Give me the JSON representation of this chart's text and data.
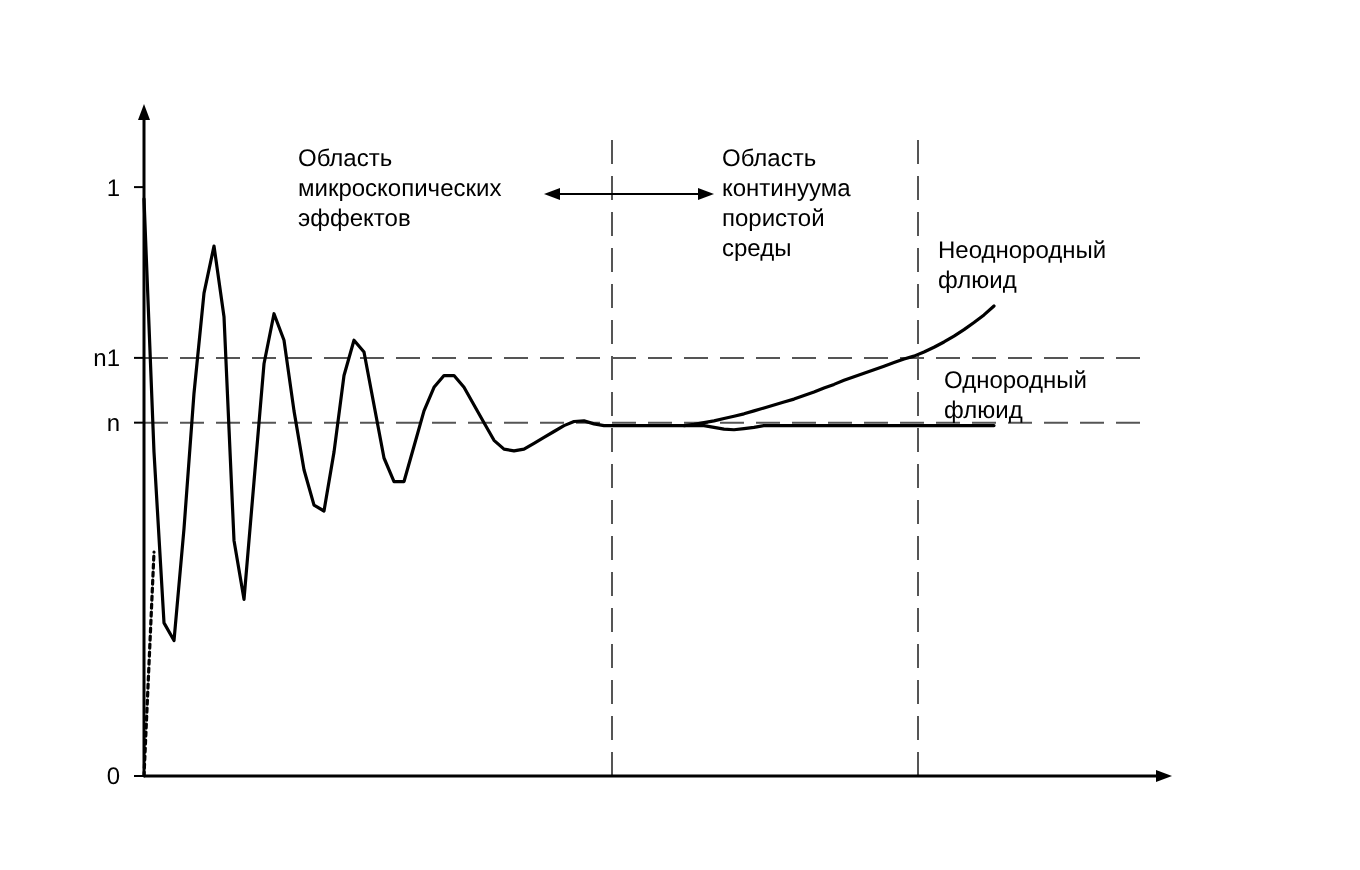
{
  "chart_data": {
    "type": "line",
    "categories": [
      null,
      null,
      null,
      null,
      null,
      null,
      null,
      null,
      null,
      null,
      null,
      null,
      null,
      null,
      null,
      null,
      null,
      null,
      null,
      null,
      null,
      null,
      null,
      null,
      null,
      null,
      null,
      null,
      null,
      null,
      null,
      null,
      null,
      null,
      null,
      null,
      null,
      null,
      null,
      null,
      null,
      null,
      null,
      null,
      null,
      null,
      null,
      null,
      null,
      null,
      null,
      null,
      null,
      null,
      null,
      null,
      null,
      null,
      null,
      null,
      null,
      null,
      null,
      null,
      null,
      null,
      null,
      null,
      null,
      null,
      null,
      null,
      null,
      null,
      null,
      null,
      null,
      null,
      null,
      null,
      null,
      null,
      null,
      null,
      null,
      null,
      null,
      null,
      null,
      null,
      null,
      null,
      null,
      null,
      null,
      null,
      null,
      null,
      null,
      null,
      null
    ],
    "ylim": [
      0,
      1.08
    ],
    "yticks": [
      0,
      {
        "value": 0.6,
        "label": "n"
      },
      {
        "value": 0.71,
        "label": "n1"
      },
      1
    ],
    "tick_labels": "y",
    "line_style": "solid",
    "series": [
      {
        "name": "Однородный флюид",
        "color": "#000000",
        "values": [
          0.98,
          0.55,
          0.26,
          0.23,
          0.42,
          0.65,
          0.82,
          0.9,
          0.78,
          0.4,
          0.3,
          0.5,
          0.7,
          0.785,
          0.74,
          0.62,
          0.52,
          0.46,
          0.45,
          0.55,
          0.68,
          0.74,
          0.72,
          0.63,
          0.54,
          0.5,
          0.5,
          0.56,
          0.62,
          0.66,
          0.68,
          0.68,
          0.66,
          0.63,
          0.6,
          0.57,
          0.555,
          0.552,
          0.555,
          0.565,
          0.575,
          0.585,
          0.595,
          0.602,
          0.603,
          0.598,
          0.595,
          0.595,
          0.595,
          0.595,
          0.595,
          0.595,
          0.595,
          0.595,
          0.595,
          0.595,
          0.595,
          0.592,
          0.589,
          0.588,
          0.59,
          0.592,
          0.595,
          0.595,
          0.595,
          0.595,
          0.595,
          0.595,
          0.595,
          0.595,
          0.595,
          0.595,
          0.595,
          0.595,
          0.595,
          0.595,
          0.595,
          0.595,
          0.595,
          0.595,
          0.595,
          0.595,
          0.595,
          0.595,
          0.595,
          0.595,
          null,
          null,
          null,
          null,
          null,
          null,
          null,
          null,
          null,
          null,
          null,
          null,
          null,
          null,
          null
        ]
      },
      {
        "name": "Неоднородный флюид",
        "color": "#000000",
        "values": [
          null,
          null,
          null,
          null,
          null,
          null,
          null,
          null,
          null,
          null,
          null,
          null,
          null,
          null,
          null,
          null,
          null,
          null,
          null,
          null,
          null,
          null,
          null,
          null,
          null,
          null,
          null,
          null,
          null,
          null,
          null,
          null,
          null,
          null,
          null,
          null,
          null,
          null,
          null,
          null,
          null,
          null,
          null,
          null,
          null,
          null,
          null,
          null,
          null,
          null,
          null,
          null,
          null,
          null,
          0.595,
          0.597,
          0.6,
          0.603,
          0.607,
          0.611,
          0.615,
          0.62,
          0.625,
          0.63,
          0.635,
          0.64,
          0.646,
          0.652,
          0.659,
          0.665,
          0.672,
          0.678,
          0.684,
          0.69,
          0.696,
          0.702,
          0.708,
          0.713,
          0.72,
          0.728,
          0.737,
          0.747,
          0.758,
          0.77,
          0.783,
          0.798,
          null,
          null,
          null,
          null,
          null,
          null,
          null,
          null,
          null,
          null,
          null,
          null,
          null,
          null,
          null
        ]
      },
      {
        "color": "#000000",
        "line_style": "dotted",
        "values": [
          0,
          0.38,
          null,
          null,
          null,
          null,
          null,
          null,
          null,
          null,
          null,
          null,
          null,
          null,
          null,
          null,
          null,
          null,
          null,
          null,
          null,
          null,
          null,
          null,
          null,
          null,
          null,
          null,
          null,
          null,
          null,
          null,
          null,
          null,
          null,
          null,
          null,
          null,
          null,
          null,
          null,
          null,
          null,
          null,
          null,
          null,
          null,
          null,
          null,
          null,
          null,
          null,
          null,
          null,
          null,
          null,
          null,
          null,
          null,
          null,
          null,
          null,
          null,
          null,
          null,
          null,
          null,
          null,
          null,
          null,
          null,
          null,
          null,
          null,
          null,
          null,
          null,
          null,
          null,
          null,
          null,
          null,
          null,
          null,
          null,
          null,
          null,
          null,
          null,
          null,
          null,
          null,
          null,
          null,
          null,
          null,
          null,
          null,
          null,
          null,
          null
        ]
      }
    ],
    "ref_lines": [
      {
        "axis": "y",
        "value": 0.6,
        "line_style": "dashed"
      },
      {
        "axis": "y",
        "value": 0.71,
        "line_style": "dashed"
      }
    ],
    "annotations": [
      "Область микроскопических эффектов",
      "Область континуума пористой среды"
    ]
  }
}
